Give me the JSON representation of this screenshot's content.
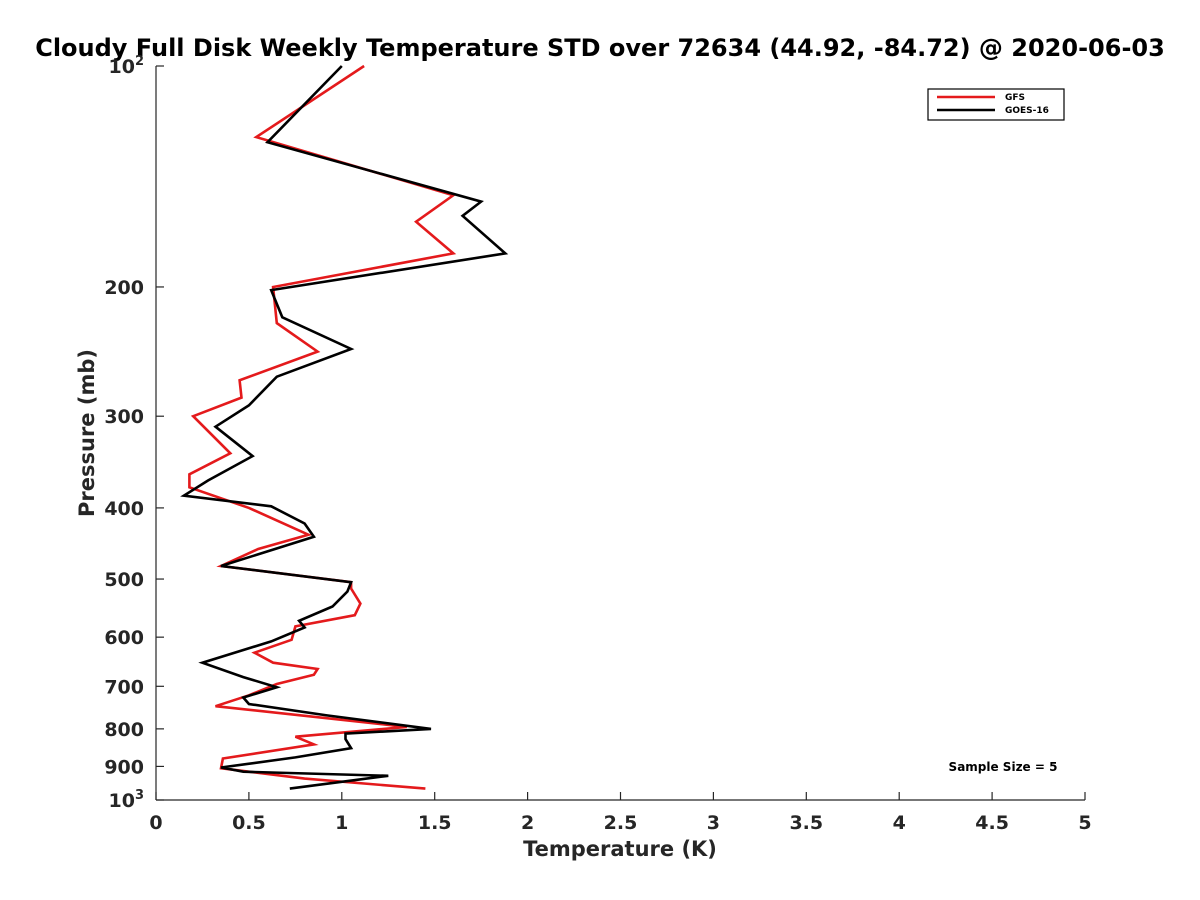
{
  "chart_data": {
    "type": "line",
    "title": "Cloudy Full Disk Weekly Temperature STD over 72634 (44.92, -84.72) @ 2020-06-03",
    "xlabel": "Temperature (K)",
    "ylabel": "Pressure (mb)",
    "xlim": [
      0,
      5
    ],
    "ylim": [
      100,
      1000
    ],
    "y_scale": "log",
    "y_reversed": true,
    "grid": false,
    "legend_position": "top-right",
    "x_ticks": [
      0,
      0.5,
      1,
      1.5,
      2,
      2.5,
      3,
      3.5,
      4,
      4.5,
      5
    ],
    "x_tick_labels": [
      "0",
      "0.5",
      "1",
      "1.5",
      "2",
      "2.5",
      "3",
      "3.5",
      "4",
      "4.5",
      "5"
    ],
    "y_ticks": [
      {
        "value": 100,
        "base": "10",
        "exp": "2"
      },
      {
        "value": 200,
        "label": "200"
      },
      {
        "value": 300,
        "label": "300"
      },
      {
        "value": 400,
        "label": "400"
      },
      {
        "value": 500,
        "label": "500"
      },
      {
        "value": 600,
        "label": "600"
      },
      {
        "value": 700,
        "label": "700"
      },
      {
        "value": 800,
        "label": "800"
      },
      {
        "value": 900,
        "label": "900"
      },
      {
        "value": 1000,
        "base": "10",
        "exp": "3"
      }
    ],
    "annotation": "Sample Size = 5",
    "series": [
      {
        "name": "GFS",
        "color": "#e41a1c",
        "points": [
          [
            1.12,
            100
          ],
          [
            0.54,
            125
          ],
          [
            1.6,
            150
          ],
          [
            1.4,
            163
          ],
          [
            1.6,
            180
          ],
          [
            0.63,
            200
          ],
          [
            0.65,
            224
          ],
          [
            0.87,
            245
          ],
          [
            0.45,
            268
          ],
          [
            0.46,
            283
          ],
          [
            0.2,
            300
          ],
          [
            0.4,
            337
          ],
          [
            0.18,
            360
          ],
          [
            0.18,
            375
          ],
          [
            0.5,
            400
          ],
          [
            0.82,
            435
          ],
          [
            0.55,
            455
          ],
          [
            0.35,
            480
          ],
          [
            1.05,
            505
          ],
          [
            1.05,
            515
          ],
          [
            1.1,
            540
          ],
          [
            1.07,
            560
          ],
          [
            0.75,
            580
          ],
          [
            0.73,
            605
          ],
          [
            0.53,
            630
          ],
          [
            0.63,
            650
          ],
          [
            0.87,
            663
          ],
          [
            0.85,
            675
          ],
          [
            0.65,
            695
          ],
          [
            0.5,
            720
          ],
          [
            0.32,
            745
          ],
          [
            1.35,
            795
          ],
          [
            0.75,
            820
          ],
          [
            0.85,
            840
          ],
          [
            0.36,
            878
          ],
          [
            0.35,
            905
          ],
          [
            0.8,
            935
          ],
          [
            1.45,
            965
          ]
        ]
      },
      {
        "name": "GOES-16",
        "color": "#000000",
        "points": [
          [
            1.0,
            100
          ],
          [
            0.6,
            127
          ],
          [
            1.75,
            153
          ],
          [
            1.65,
            160
          ],
          [
            1.88,
            180
          ],
          [
            0.62,
            202
          ],
          [
            0.68,
            220
          ],
          [
            1.05,
            243
          ],
          [
            0.65,
            265
          ],
          [
            0.5,
            290
          ],
          [
            0.32,
            310
          ],
          [
            0.52,
            340
          ],
          [
            0.28,
            367
          ],
          [
            0.15,
            385
          ],
          [
            0.62,
            398
          ],
          [
            0.8,
            420
          ],
          [
            0.85,
            438
          ],
          [
            0.35,
            480
          ],
          [
            1.05,
            505
          ],
          [
            1.03,
            520
          ],
          [
            0.95,
            545
          ],
          [
            0.77,
            570
          ],
          [
            0.8,
            582
          ],
          [
            0.62,
            608
          ],
          [
            0.25,
            650
          ],
          [
            0.47,
            680
          ],
          [
            0.65,
            702
          ],
          [
            0.47,
            725
          ],
          [
            0.5,
            740
          ],
          [
            0.92,
            767
          ],
          [
            1.48,
            800
          ],
          [
            1.02,
            812
          ],
          [
            1.02,
            826
          ],
          [
            1.05,
            850
          ],
          [
            0.75,
            875
          ],
          [
            0.35,
            903
          ],
          [
            0.47,
            915
          ],
          [
            1.25,
            927
          ],
          [
            0.72,
            965
          ]
        ]
      }
    ]
  }
}
